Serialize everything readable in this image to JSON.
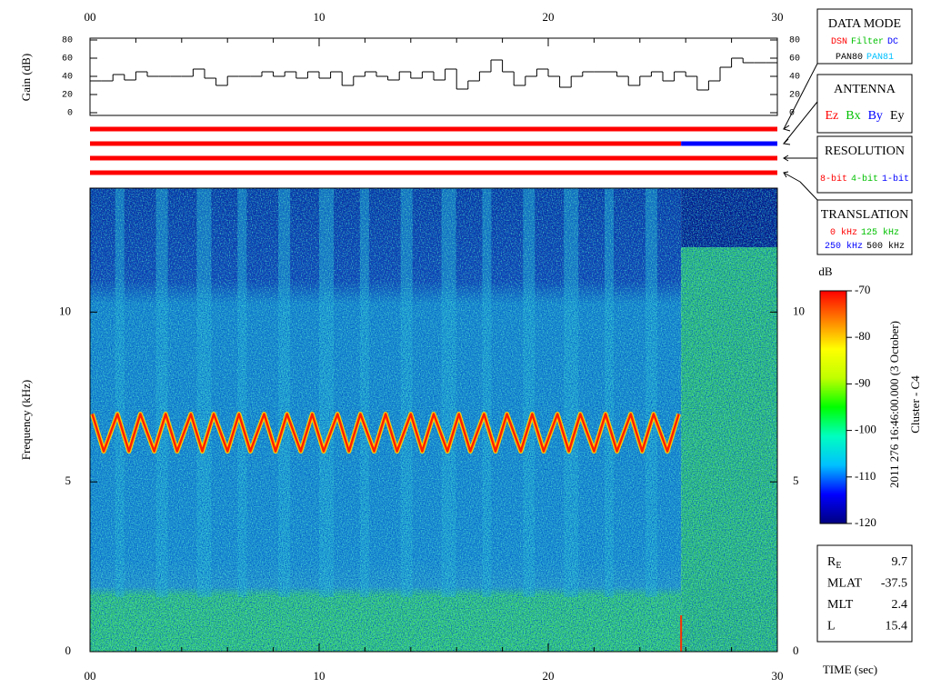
{
  "chart_data": [
    {
      "type": "step-line",
      "ylabel": "Gain (dB)",
      "xlim": [
        0,
        30
      ],
      "xticks": [
        {
          "value": 0,
          "label": "00"
        },
        10,
        20,
        30
      ],
      "ylim": [
        0,
        80
      ],
      "yticks": [
        0,
        20,
        40,
        60,
        80
      ],
      "series": [
        {
          "color": "#000000",
          "x": [
            0,
            0.5,
            1,
            1.5,
            2,
            2.5,
            3,
            3.5,
            4,
            4.5,
            5,
            5.5,
            6,
            6.5,
            7,
            7.5,
            8,
            8.5,
            9,
            9.5,
            10,
            10.5,
            11,
            11.5,
            12,
            12.5,
            13,
            13.5,
            14,
            14.5,
            15,
            15.5,
            16,
            16.5,
            17,
            17.5,
            18,
            18.5,
            19,
            19.5,
            20,
            20.5,
            21,
            21.5,
            22,
            22.5,
            23,
            23.5,
            24,
            24.5,
            25,
            25.5,
            26,
            26.5,
            27,
            27.5,
            28,
            28.5,
            29,
            29.5,
            30
          ],
          "values": [
            35,
            35,
            42,
            36,
            45,
            40,
            40,
            40,
            40,
            48,
            38,
            30,
            40,
            40,
            40,
            45,
            40,
            45,
            38,
            45,
            38,
            45,
            30,
            40,
            45,
            40,
            36,
            45,
            38,
            45,
            36,
            48,
            26,
            35,
            45,
            58,
            45,
            30,
            40,
            48,
            40,
            28,
            40,
            45,
            45,
            45,
            40,
            30,
            40,
            45,
            35,
            45,
            40,
            25,
            35,
            50,
            60,
            55,
            55,
            55,
            55
          ]
        }
      ]
    },
    {
      "type": "status-bars",
      "xlim": [
        0,
        30
      ],
      "bars": [
        {
          "segments": [
            {
              "start": 0,
              "end": 30,
              "color": "#ff0000"
            }
          ]
        },
        {
          "segments": [
            {
              "start": 0,
              "end": 25.8,
              "color": "#ff0000"
            },
            {
              "start": 25.8,
              "end": 30,
              "color": "#0000ff"
            }
          ]
        },
        {
          "segments": [
            {
              "start": 0,
              "end": 30,
              "color": "#ff0000"
            }
          ]
        },
        {
          "segments": [
            {
              "start": 0,
              "end": 30,
              "color": "#ff0000"
            }
          ]
        }
      ]
    },
    {
      "type": "spectrogram",
      "xlabel": "TIME (sec)",
      "ylabel": "Frequency (kHz)",
      "xlim": [
        0,
        30
      ],
      "xticks": [
        {
          "value": 0,
          "label": "00"
        },
        10,
        20,
        30
      ],
      "ylim": [
        0,
        13.65
      ],
      "yticks": [
        0,
        5,
        10
      ],
      "series": [
        {
          "color": "#ff2000",
          "x": [
            0.1,
            0.6,
            1.2,
            1.7,
            2.2,
            2.8,
            3.3,
            3.8,
            4.4,
            4.9,
            5.4,
            6.0,
            6.5,
            7.0,
            7.6,
            8.1,
            8.6,
            9.2,
            9.7,
            10.2,
            10.8,
            11.3,
            11.8,
            12.4,
            12.9,
            13.4,
            14.0,
            14.5,
            15.0,
            15.6,
            16.1,
            16.6,
            17.2,
            17.7,
            18.2,
            18.8,
            19.3,
            19.8,
            20.4,
            20.9,
            21.4,
            22.0,
            22.5,
            23.0,
            23.6,
            24.1,
            24.6,
            25.2,
            25.7
          ],
          "values": [
            7.0,
            5.9,
            7.0,
            5.9,
            7.0,
            5.9,
            7.0,
            5.9,
            7.0,
            5.9,
            7.0,
            5.9,
            7.0,
            5.9,
            7.0,
            5.9,
            7.0,
            5.9,
            7.0,
            5.9,
            7.0,
            5.9,
            7.0,
            5.9,
            7.0,
            5.9,
            7.0,
            5.9,
            7.0,
            5.9,
            7.0,
            5.9,
            7.0,
            5.9,
            7.0,
            5.9,
            7.0,
            5.9,
            7.0,
            5.9,
            7.0,
            5.9,
            7.0,
            5.9,
            7.0,
            5.9,
            7.0,
            5.9,
            7.0
          ]
        }
      ],
      "colorbar": {
        "label": "dB",
        "lim": [
          -120,
          -70
        ],
        "ticks": [
          -70,
          -80,
          -90,
          -100,
          -110,
          -120
        ],
        "colors": [
          "#000080",
          "#0000ff",
          "#00c0ff",
          "#00ffc0",
          "#00ff00",
          "#c0ff00",
          "#ffff00",
          "#ff8000",
          "#ff0000"
        ]
      },
      "annotations": [
        "2011 276 16:46:00.000 (3 October)",
        "Cluster - C4"
      ]
    }
  ],
  "legend_boxes": [
    {
      "title": "DATA MODE",
      "rows": [
        [
          {
            "text": "DSN",
            "color": "#ff0000"
          },
          {
            "text": "Filter",
            "color": "#00c000"
          },
          {
            "text": "DC",
            "color": "#0000ff"
          }
        ],
        [
          {
            "text": "PAN80",
            "color": "#000000"
          },
          {
            "text": "PAN81",
            "color": "#00c0ff"
          }
        ]
      ]
    },
    {
      "title": "ANTENNA",
      "rows": [
        [
          {
            "text": "Ez",
            "color": "#ff0000"
          },
          {
            "text": "Bx",
            "color": "#00c000"
          },
          {
            "text": "By",
            "color": "#0000ff"
          },
          {
            "text": "Ey",
            "color": "#000000"
          }
        ]
      ]
    },
    {
      "title": "RESOLUTION",
      "rows": [
        [
          {
            "text": "8-bit",
            "color": "#ff0000"
          },
          {
            "text": "4-bit",
            "color": "#00c000"
          },
          {
            "text": "1-bit",
            "color": "#0000ff"
          }
        ]
      ]
    },
    {
      "title": "TRANSLATION",
      "rows": [
        [
          {
            "text": "0 kHz",
            "color": "#ff0000"
          },
          {
            "text": "125 kHz",
            "color": "#00c000"
          }
        ],
        [
          {
            "text": "250 kHz",
            "color": "#0000ff"
          },
          {
            "text": "500 kHz",
            "color": "#000000"
          }
        ]
      ]
    }
  ],
  "info": [
    {
      "label": "R",
      "sub": "E",
      "value": 9.7
    },
    {
      "label": "MLAT",
      "value": -37.5
    },
    {
      "label": "MLT",
      "value": 2.4
    },
    {
      "label": "L",
      "value": 15.4
    }
  ]
}
